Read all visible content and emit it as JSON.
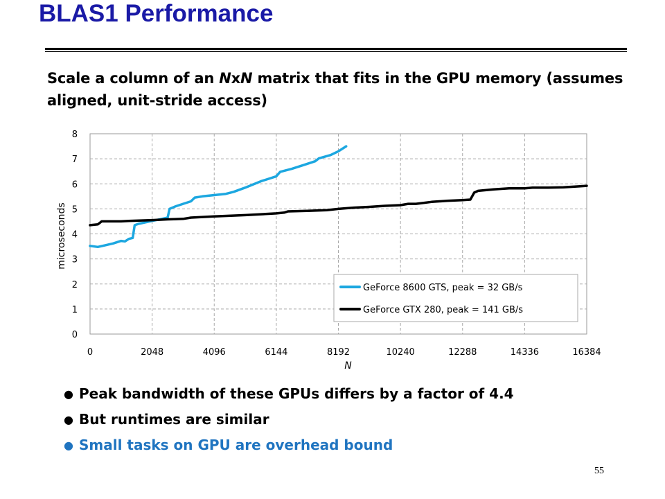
{
  "slide": {
    "title": "BLAS1 Performance",
    "subtitle_parts": [
      "Scale a column of an ",
      "N",
      "x",
      "N",
      " matrix that fits in the GPU memory (assumes aligned, unit-stride access)"
    ],
    "bullets": [
      {
        "text": "Peak bandwidth of these GPUs differs by a factor of 4.4",
        "color": "#000000"
      },
      {
        "text": "But runtimes are similar",
        "color": "#000000"
      },
      {
        "text": "Small tasks on GPU are overhead bound",
        "color": "#1f74c0"
      }
    ],
    "page_number": "55",
    "title_color": "#1a1aa6"
  },
  "chart_data": {
    "type": "line",
    "xlabel": "N",
    "ylabel": "microseconds",
    "xlim": [
      0,
      16384
    ],
    "ylim": [
      0,
      8
    ],
    "x_ticks": [
      0,
      2048,
      4096,
      6144,
      8192,
      10240,
      12288,
      14336,
      16384
    ],
    "y_ticks": [
      0,
      1,
      2,
      3,
      4,
      5,
      6,
      7,
      8
    ],
    "grid": "dashed, both axes",
    "legend_position": "bottom-right",
    "series": [
      {
        "name": "GeForce 8600 GTS, peak = 32 GB/s",
        "color": "#1ca7e0",
        "points": [
          [
            0,
            3.52
          ],
          [
            256,
            3.48
          ],
          [
            512,
            3.55
          ],
          [
            768,
            3.62
          ],
          [
            1024,
            3.72
          ],
          [
            1152,
            3.7
          ],
          [
            1280,
            3.8
          ],
          [
            1408,
            3.84
          ],
          [
            1472,
            4.35
          ],
          [
            1600,
            4.4
          ],
          [
            1792,
            4.45
          ],
          [
            2048,
            4.52
          ],
          [
            2304,
            4.58
          ],
          [
            2560,
            4.65
          ],
          [
            2624,
            5.0
          ],
          [
            2816,
            5.1
          ],
          [
            3072,
            5.2
          ],
          [
            3328,
            5.3
          ],
          [
            3456,
            5.45
          ],
          [
            3712,
            5.5
          ],
          [
            4096,
            5.55
          ],
          [
            4480,
            5.6
          ],
          [
            4736,
            5.68
          ],
          [
            5120,
            5.85
          ],
          [
            5632,
            6.1
          ],
          [
            6144,
            6.3
          ],
          [
            6272,
            6.48
          ],
          [
            6656,
            6.6
          ],
          [
            7040,
            6.75
          ],
          [
            7424,
            6.9
          ],
          [
            7552,
            7.02
          ],
          [
            7936,
            7.15
          ],
          [
            8192,
            7.3
          ],
          [
            8448,
            7.5
          ]
        ]
      },
      {
        "name": "GeForce GTX 280, peak = 141 GB/s",
        "color": "#000000",
        "points": [
          [
            0,
            4.35
          ],
          [
            256,
            4.38
          ],
          [
            384,
            4.5
          ],
          [
            1024,
            4.5
          ],
          [
            1280,
            4.52
          ],
          [
            2048,
            4.55
          ],
          [
            2560,
            4.58
          ],
          [
            3072,
            4.6
          ],
          [
            3328,
            4.65
          ],
          [
            4096,
            4.7
          ],
          [
            5120,
            4.75
          ],
          [
            6144,
            4.82
          ],
          [
            6400,
            4.85
          ],
          [
            6528,
            4.9
          ],
          [
            7168,
            4.92
          ],
          [
            7808,
            4.95
          ],
          [
            8192,
            5.0
          ],
          [
            8704,
            5.05
          ],
          [
            9216,
            5.08
          ],
          [
            9728,
            5.12
          ],
          [
            10240,
            5.15
          ],
          [
            10496,
            5.2
          ],
          [
            10752,
            5.2
          ],
          [
            11264,
            5.28
          ],
          [
            11776,
            5.32
          ],
          [
            12288,
            5.35
          ],
          [
            12544,
            5.37
          ],
          [
            12672,
            5.65
          ],
          [
            12800,
            5.72
          ],
          [
            13312,
            5.78
          ],
          [
            13824,
            5.82
          ],
          [
            14336,
            5.82
          ],
          [
            14592,
            5.85
          ],
          [
            15104,
            5.85
          ],
          [
            15616,
            5.86
          ],
          [
            16128,
            5.9
          ],
          [
            16384,
            5.92
          ]
        ]
      }
    ]
  }
}
